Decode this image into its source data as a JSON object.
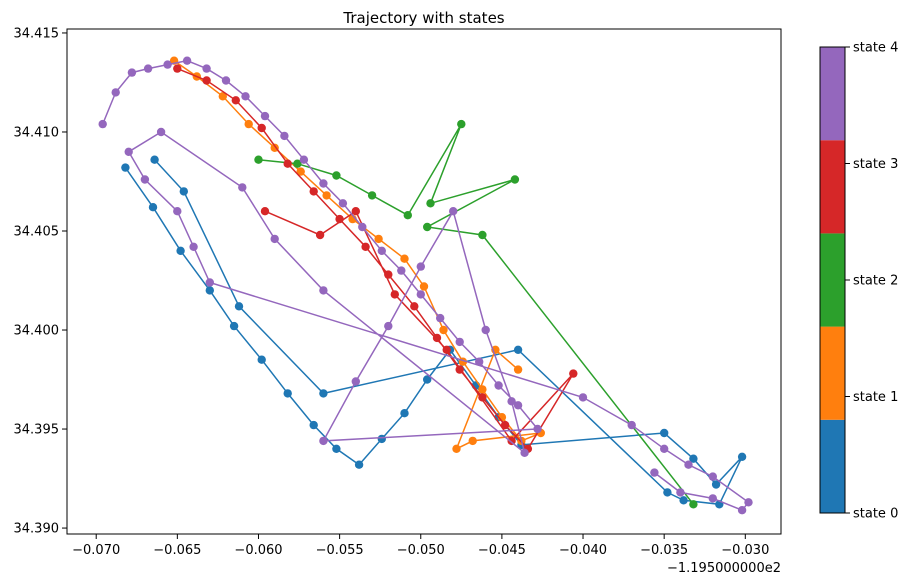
{
  "chart_data": {
    "type": "line",
    "title": "Trajectory with states",
    "xlabel": "",
    "ylabel": "",
    "x_offset_label": "−1.195000000e2",
    "xlim": [
      -0.0718,
      -0.0278
    ],
    "ylim": [
      34.3897,
      34.4152
    ],
    "x_ticks": [
      -0.07,
      -0.065,
      -0.06,
      -0.055,
      -0.05,
      -0.045,
      -0.04,
      -0.035,
      -0.03
    ],
    "x_tick_labels": [
      "−0.070",
      "−0.065",
      "−0.060",
      "−0.055",
      "−0.050",
      "−0.045",
      "−0.040",
      "−0.035",
      "−0.030"
    ],
    "y_ticks": [
      34.39,
      34.395,
      34.4,
      34.405,
      34.41,
      34.415
    ],
    "y_tick_labels": [
      "34.390",
      "34.395",
      "34.400",
      "34.405",
      "34.410",
      "34.415"
    ],
    "grid": false,
    "colorbar": {
      "labels": [
        "state 0",
        "state 1",
        "state 2",
        "state 3",
        "state 4"
      ],
      "colors": [
        "#1f77b4",
        "#ff7f0e",
        "#2ca02c",
        "#d62728",
        "#9467bd"
      ]
    },
    "series": [
      {
        "state": 0,
        "color": "#1f77b4",
        "x": [
          -0.0682,
          -0.0665,
          -0.0648,
          -0.063,
          -0.0615,
          -0.0598,
          -0.0582,
          -0.0566,
          -0.0552,
          -0.0538,
          -0.0524,
          -0.051,
          -0.0496,
          -0.0482,
          -0.0466,
          -0.0452,
          -0.0438,
          -0.035,
          -0.0332,
          -0.0318,
          -0.0302,
          -0.0316,
          -0.0338,
          -0.0348,
          -0.044,
          -0.056,
          -0.0612,
          -0.0646,
          -0.0664
        ],
        "y": [
          34.4082,
          34.4062,
          34.404,
          34.402,
          34.4002,
          34.3985,
          34.3968,
          34.3952,
          34.394,
          34.3932,
          34.3945,
          34.3958,
          34.3975,
          34.399,
          34.3972,
          34.3956,
          34.3942,
          34.3948,
          34.3935,
          34.3922,
          34.3936,
          34.3912,
          34.3914,
          34.3918,
          34.399,
          34.3968,
          34.4012,
          34.407,
          34.4086
        ]
      },
      {
        "state": 1,
        "color": "#ff7f0e",
        "x": [
          -0.0652,
          -0.0638,
          -0.0622,
          -0.0606,
          -0.059,
          -0.0574,
          -0.0558,
          -0.0542,
          -0.0526,
          -0.051,
          -0.0498,
          -0.0486,
          -0.0474,
          -0.0462,
          -0.045,
          -0.0438,
          -0.0426,
          -0.0468,
          -0.0478,
          -0.0454,
          -0.044
        ],
        "y": [
          34.4136,
          34.4128,
          34.4118,
          34.4104,
          34.4092,
          34.408,
          34.4068,
          34.4056,
          34.4046,
          34.4036,
          34.4022,
          34.4,
          34.3984,
          34.397,
          34.3956,
          34.3944,
          34.3948,
          34.3944,
          34.394,
          34.399,
          34.398
        ]
      },
      {
        "state": 2,
        "color": "#2ca02c",
        "x": [
          -0.06,
          -0.0576,
          -0.0552,
          -0.053,
          -0.0508,
          -0.0475,
          -0.0494,
          -0.0442,
          -0.0496,
          -0.0462,
          -0.0332
        ],
        "y": [
          34.4086,
          34.4084,
          34.4078,
          34.4068,
          34.4058,
          34.4104,
          34.4064,
          34.4076,
          34.4052,
          34.4048,
          34.3912
        ]
      },
      {
        "state": 3,
        "color": "#d62728",
        "x": [
          -0.065,
          -0.0632,
          -0.0614,
          -0.0598,
          -0.0582,
          -0.0566,
          -0.055,
          -0.0534,
          -0.052,
          -0.0504,
          -0.049,
          -0.0476,
          -0.0462,
          -0.0448,
          -0.0434,
          -0.0406,
          -0.0444,
          -0.0484,
          -0.0516,
          -0.054,
          -0.0562,
          -0.0596
        ],
        "y": [
          34.4132,
          34.4126,
          34.4116,
          34.4102,
          34.4084,
          34.407,
          34.4056,
          34.4042,
          34.4028,
          34.4012,
          34.3996,
          34.398,
          34.3966,
          34.3952,
          34.394,
          34.3978,
          34.3944,
          34.399,
          34.4018,
          34.406,
          34.4048,
          34.406
        ]
      },
      {
        "state": 4,
        "color": "#9467bd",
        "x": [
          -0.0696,
          -0.0688,
          -0.0678,
          -0.0668,
          -0.0656,
          -0.0644,
          -0.0632,
          -0.062,
          -0.0608,
          -0.0596,
          -0.0584,
          -0.0572,
          -0.056,
          -0.0548,
          -0.0536,
          -0.0524,
          -0.0512,
          -0.05,
          -0.0488,
          -0.0476,
          -0.0464,
          -0.0452,
          -0.044,
          -0.0428,
          -0.056,
          -0.054,
          -0.052,
          -0.05,
          -0.048,
          -0.046,
          -0.0444,
          -0.0436,
          -0.056,
          -0.059,
          -0.061,
          -0.066,
          -0.068,
          -0.067,
          -0.065,
          -0.064,
          -0.063,
          -0.04,
          -0.037,
          -0.035,
          -0.0335,
          -0.032,
          -0.0298,
          -0.0302,
          -0.032,
          -0.034,
          -0.0356
        ],
        "y": [
          34.4104,
          34.412,
          34.413,
          34.4132,
          34.4134,
          34.4136,
          34.4132,
          34.4126,
          34.4118,
          34.4108,
          34.4098,
          34.4086,
          34.4074,
          34.4064,
          34.4052,
          34.404,
          34.403,
          34.4018,
          34.4006,
          34.3994,
          34.3984,
          34.3972,
          34.3962,
          34.395,
          34.3944,
          34.3974,
          34.4002,
          34.4032,
          34.406,
          34.4,
          34.3964,
          34.3938,
          34.402,
          34.4046,
          34.4072,
          34.41,
          34.409,
          34.4076,
          34.406,
          34.4042,
          34.4024,
          34.3966,
          34.3952,
          34.394,
          34.3932,
          34.3926,
          34.3913,
          34.3909,
          34.3915,
          34.3918,
          34.3928
        ]
      }
    ]
  }
}
